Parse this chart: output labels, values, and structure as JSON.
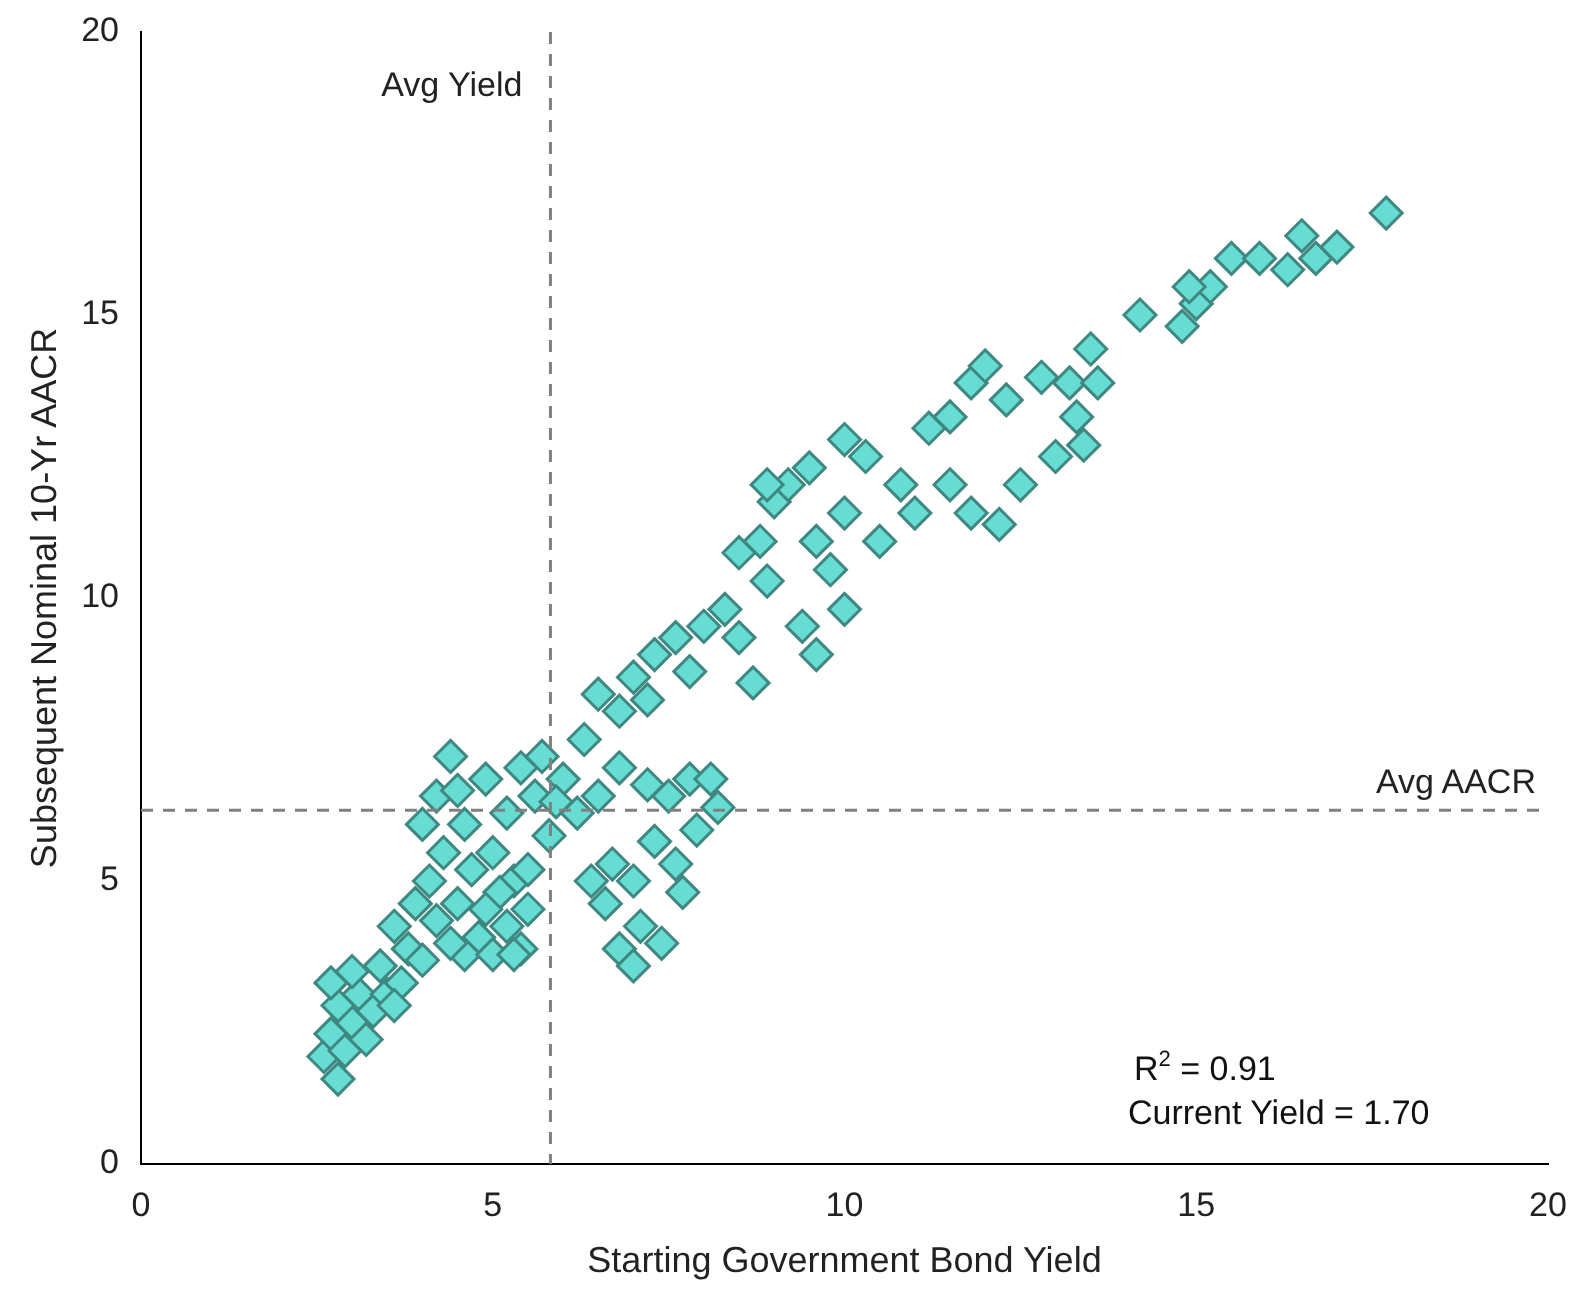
{
  "chart_data": {
    "type": "scatter",
    "xlabel": "Starting Government Bond Yield",
    "ylabel": "Subsequent Nominal 10-Yr AACR",
    "xlim": [
      0,
      20
    ],
    "xticks": [
      0,
      5,
      10,
      15,
      20
    ],
    "ylim": [
      0,
      20
    ],
    "yticks": [
      0,
      5,
      10,
      15,
      20
    ],
    "grid": false,
    "legend": false,
    "marker": "diamond",
    "annotations": [
      "R$^{2}$ = 0.91",
      "Current Yield = 1.70"
    ],
    "ref_lines": [
      {
        "axis": "x",
        "value": 5.82,
        "label": "Avg Yield",
        "color": "#808080",
        "line_style": "dashed"
      },
      {
        "axis": "y",
        "value": 6.25,
        "label": "Avg AACR",
        "color": "#808080",
        "line_style": "dashed"
      }
    ],
    "series": [
      {
        "color": "#66dcd2",
        "x": [
          2.8,
          2.6,
          2.7,
          2.9,
          3.0,
          2.8,
          3.1,
          2.7,
          3.3,
          3.5,
          3.4,
          3.7,
          3.8,
          3.6,
          4.0,
          3.9,
          4.1,
          4.2,
          4.3,
          4.0,
          4.2,
          4.4,
          4.5,
          4.6,
          4.7,
          4.5,
          4.8,
          4.6,
          5.0,
          5.2,
          5.4,
          5.5,
          5.3,
          5.0,
          5.2,
          5.4,
          5.6,
          5.8,
          5.5,
          5.1,
          4.9,
          5.7,
          6.0,
          6.2,
          6.5,
          6.8,
          7.2,
          7.5,
          7.8,
          8.1,
          8.2,
          7.9,
          7.6,
          7.3,
          7.0,
          6.7,
          6.6,
          7.1,
          6.8,
          7.0,
          7.4,
          7.7,
          6.4,
          3.2,
          3.0,
          3.6,
          4.4,
          4.9,
          5.3,
          5.9,
          6.3,
          6.5,
          6.8,
          7.0,
          7.3,
          7.6,
          7.2,
          7.8,
          8.0,
          8.3,
          8.5,
          8.7,
          8.9,
          8.8,
          9.0,
          9.2,
          9.5,
          9.6,
          9.8,
          9.4,
          9.6,
          10.0,
          10.0,
          10.3,
          10.5,
          10.8,
          10.0,
          11.0,
          11.2,
          11.5,
          11.5,
          11.8,
          12.0,
          12.3,
          11.8,
          12.5,
          12.2,
          12.8,
          13.2,
          13.0,
          13.3,
          13.5,
          13.6,
          13.4,
          14.2,
          14.8,
          15.0,
          15.2,
          15.5,
          15.9,
          16.3,
          16.5,
          16.7,
          17.0,
          17.7,
          14.9,
          8.5,
          8.9
        ],
        "values": [
          1.5,
          1.9,
          2.3,
          2.0,
          2.5,
          2.8,
          3.0,
          3.2,
          2.7,
          3.0,
          3.5,
          3.2,
          3.8,
          4.2,
          3.6,
          4.6,
          5.0,
          4.3,
          5.5,
          6.0,
          6.5,
          7.2,
          6.6,
          6.0,
          5.2,
          4.6,
          4.0,
          3.7,
          3.7,
          4.2,
          3.8,
          4.5,
          5.0,
          5.5,
          6.2,
          7.0,
          6.5,
          5.8,
          5.2,
          4.8,
          6.8,
          7.2,
          6.8,
          6.2,
          6.5,
          7.0,
          6.7,
          6.5,
          6.8,
          6.8,
          6.3,
          5.9,
          5.3,
          5.7,
          5.0,
          5.3,
          4.6,
          4.2,
          3.8,
          3.5,
          3.9,
          4.8,
          5.0,
          2.2,
          3.4,
          2.8,
          3.9,
          4.5,
          3.7,
          6.4,
          7.5,
          8.3,
          8.0,
          8.6,
          9.0,
          9.3,
          8.2,
          8.7,
          9.5,
          9.8,
          9.3,
          8.5,
          10.3,
          11.0,
          11.7,
          12.0,
          12.3,
          11.0,
          10.5,
          9.5,
          9.0,
          9.8,
          11.5,
          12.5,
          11.0,
          12.0,
          12.8,
          11.5,
          13.0,
          13.2,
          12.0,
          13.8,
          14.1,
          13.5,
          11.5,
          12.0,
          11.3,
          13.9,
          13.8,
          12.5,
          13.2,
          14.4,
          13.8,
          12.7,
          15.0,
          14.8,
          15.2,
          15.5,
          16.0,
          16.0,
          15.8,
          16.4,
          16.0,
          16.2,
          16.8,
          15.5,
          10.8,
          12.0
        ]
      }
    ]
  }
}
